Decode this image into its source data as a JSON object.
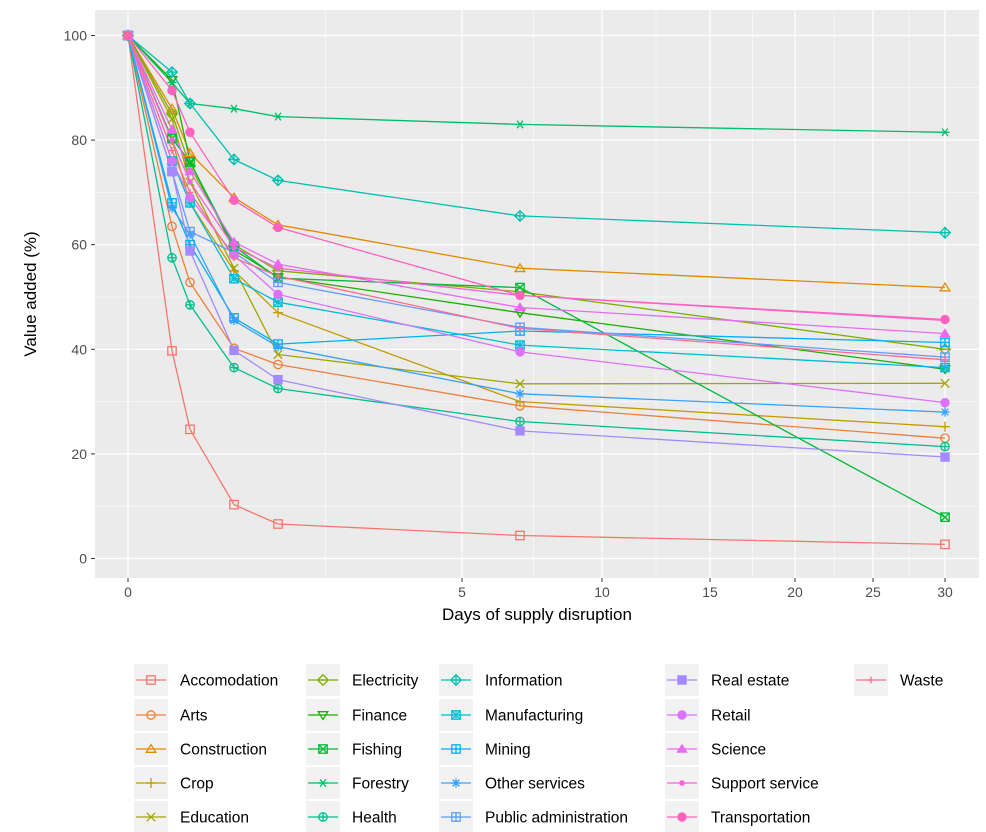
{
  "chart_data": {
    "type": "line",
    "title": "",
    "xlabel": "Days of supply disruption",
    "ylabel": "Value added (%)",
    "x_ticks": [
      0,
      5,
      10,
      15,
      20,
      25,
      30
    ],
    "y_ticks": [
      0,
      20,
      40,
      60,
      80,
      100
    ],
    "ylim": [
      0,
      100
    ],
    "grid": true,
    "legend_position": "bottom",
    "x": [
      0,
      0.25,
      0.5,
      1,
      1.5,
      7,
      30
    ],
    "series": [
      {
        "name": "Accomodation",
        "color": "#F8766D",
        "shape": "square-open",
        "values": [
          100,
          39.7,
          24.7,
          10.3,
          6.6,
          4.4,
          2.7
        ]
      },
      {
        "name": "Arts",
        "color": "#EF7F3A",
        "shape": "circle-open",
        "values": [
          100,
          63.5,
          52.8,
          40.2,
          37.1,
          29.2,
          23.0
        ]
      },
      {
        "name": "Construction",
        "color": "#E38900",
        "shape": "triangle-open",
        "values": [
          100,
          86.0,
          77.5,
          69.0,
          63.8,
          55.5,
          51.8
        ]
      },
      {
        "name": "Crop",
        "color": "#C49A00",
        "shape": "plus",
        "values": [
          100,
          80.0,
          68.0,
          55.0,
          47.0,
          30.0,
          25.2
        ]
      },
      {
        "name": "Education",
        "color": "#A3A500",
        "shape": "cross",
        "values": [
          100,
          84.0,
          72.0,
          55.5,
          39.0,
          33.4,
          33.5
        ]
      },
      {
        "name": "Electricity",
        "color": "#7CAE00",
        "shape": "diamond-open",
        "values": [
          100,
          85.0,
          75.0,
          60.0,
          55.0,
          51.0,
          40.0
        ]
      },
      {
        "name": "Finance",
        "color": "#1AAF00",
        "shape": "triangle-down-open",
        "values": [
          100,
          91.5,
          76.0,
          59.0,
          53.8,
          47.0,
          36.2
        ]
      },
      {
        "name": "Fishing",
        "color": "#00BA38",
        "shape": "square-cross",
        "values": [
          100,
          80.3,
          75.8,
          59.7,
          53.6,
          51.8,
          7.9
        ]
      },
      {
        "name": "Forestry",
        "color": "#00BE67",
        "shape": "asterisk",
        "values": [
          100,
          91.0,
          87.0,
          86.0,
          84.5,
          83.0,
          81.5
        ]
      },
      {
        "name": "Health",
        "color": "#00BF8C",
        "shape": "circle-plus",
        "values": [
          100,
          57.5,
          48.5,
          36.5,
          32.5,
          26.2,
          21.4
        ]
      },
      {
        "name": "Information",
        "color": "#00C0AF",
        "shape": "diamond-plus",
        "values": [
          100,
          93.0,
          87.0,
          76.3,
          72.3,
          65.5,
          62.3
        ]
      },
      {
        "name": "Manufacturing",
        "color": "#00BCD8",
        "shape": "square-star",
        "values": [
          100,
          76.0,
          68.0,
          53.5,
          49.0,
          40.8,
          36.5
        ]
      },
      {
        "name": "Mining",
        "color": "#00B0F6",
        "shape": "square-plus",
        "values": [
          100,
          68.0,
          60.0,
          46.0,
          41.0,
          43.5,
          41.3
        ]
      },
      {
        "name": "Other services",
        "color": "#35A2FF",
        "shape": "star",
        "values": [
          100,
          67.0,
          62.0,
          45.5,
          40.5,
          31.5,
          28.0
        ]
      },
      {
        "name": "Public administration",
        "color": "#619CFF",
        "shape": "square-plus",
        "values": [
          100,
          74.0,
          62.5,
          58.5,
          52.8,
          44.2,
          38.5
        ]
      },
      {
        "name": "Real estate",
        "color": "#A58AFF",
        "shape": "square",
        "values": [
          100,
          74.0,
          58.8,
          39.8,
          34.2,
          24.4,
          19.4
        ]
      },
      {
        "name": "Retail",
        "color": "#DB72FB",
        "shape": "circle",
        "values": [
          100,
          76.0,
          69.0,
          58.0,
          50.5,
          39.5,
          29.8
        ]
      },
      {
        "name": "Science",
        "color": "#E76BF3",
        "shape": "triangle",
        "values": [
          100,
          82.0,
          74.0,
          60.5,
          56.3,
          48.0,
          43.0
        ]
      },
      {
        "name": "Support service",
        "color": "#FA62DB",
        "shape": "dot",
        "values": [
          100,
          80.0,
          72.0,
          59.5,
          55.5,
          50.3,
          45.5
        ]
      },
      {
        "name": "Transportation",
        "color": "#FF62BC",
        "shape": "circle",
        "values": [
          100,
          89.5,
          81.5,
          68.5,
          63.3,
          50.3,
          45.7
        ]
      },
      {
        "name": "Waste",
        "color": "#FF6C91",
        "shape": "plus-small",
        "values": [
          100,
          78.0,
          70.0,
          57.5,
          54.0,
          44.0,
          38.0
        ]
      }
    ]
  }
}
